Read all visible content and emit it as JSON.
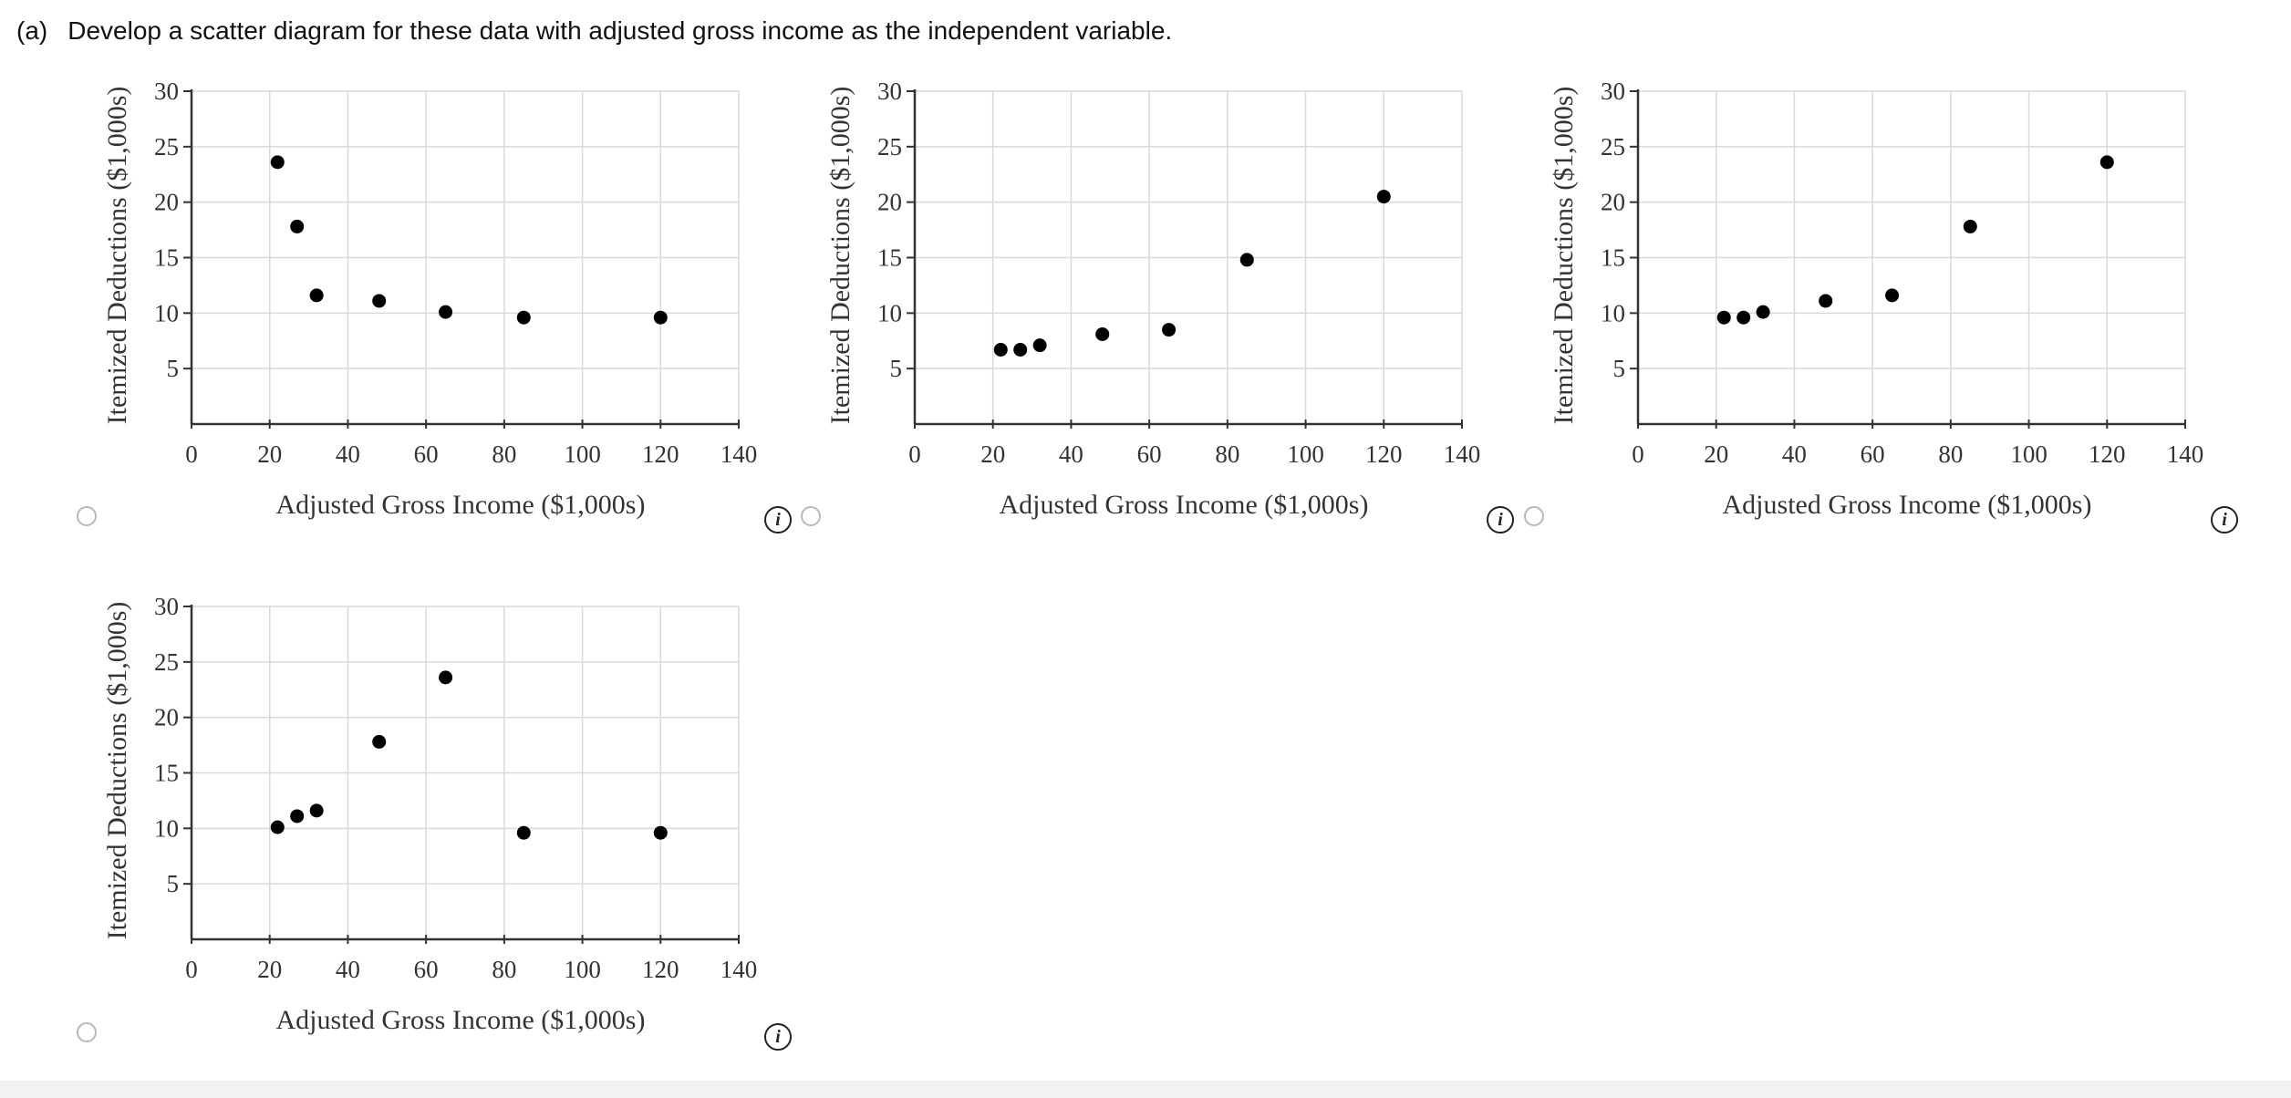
{
  "question": {
    "label": "(a)",
    "text": "Develop a scatter diagram for these data with adjusted gross income as the independent variable."
  },
  "icons": {
    "radio": "radio-button-icon",
    "info": "info-icon"
  },
  "colors": {
    "point": "#000000",
    "grid": "#d9d9d9",
    "axis": "#333333"
  },
  "chart_data": [
    {
      "type": "scatter",
      "xlabel": "Adjusted Gross Income ($1,000s)",
      "ylabel": "Itemized Deductions ($1,000s)",
      "xlim": [
        0,
        140
      ],
      "ylim": [
        0,
        30
      ],
      "xticks": [
        0,
        20,
        40,
        60,
        80,
        100,
        120,
        140
      ],
      "yticks": [
        5,
        10,
        15,
        20,
        25,
        30
      ],
      "points": [
        [
          22,
          23.6
        ],
        [
          27,
          17.8
        ],
        [
          32,
          11.6
        ],
        [
          48,
          11.1
        ],
        [
          65,
          10.1
        ],
        [
          85,
          9.6
        ],
        [
          120,
          9.6
        ]
      ]
    },
    {
      "type": "scatter",
      "xlabel": "Adjusted Gross Income ($1,000s)",
      "ylabel": "Itemized Deductions ($1,000s)",
      "xlim": [
        0,
        140
      ],
      "ylim": [
        0,
        30
      ],
      "xticks": [
        0,
        20,
        40,
        60,
        80,
        100,
        120,
        140
      ],
      "yticks": [
        5,
        10,
        15,
        20,
        25,
        30
      ],
      "points": [
        [
          22,
          6.7
        ],
        [
          27,
          6.7
        ],
        [
          32,
          7.1
        ],
        [
          48,
          8.1
        ],
        [
          65,
          8.5
        ],
        [
          85,
          14.8
        ],
        [
          120,
          20.5
        ]
      ]
    },
    {
      "type": "scatter",
      "xlabel": "Adjusted Gross Income ($1,000s)",
      "ylabel": "Itemized Deductions ($1,000s)",
      "xlim": [
        0,
        140
      ],
      "ylim": [
        0,
        30
      ],
      "xticks": [
        0,
        20,
        40,
        60,
        80,
        100,
        120,
        140
      ],
      "yticks": [
        5,
        10,
        15,
        20,
        25,
        30
      ],
      "points": [
        [
          22,
          9.6
        ],
        [
          27,
          9.6
        ],
        [
          32,
          10.1
        ],
        [
          48,
          11.1
        ],
        [
          65,
          11.6
        ],
        [
          85,
          17.8
        ],
        [
          120,
          23.6
        ]
      ]
    },
    {
      "type": "scatter",
      "xlabel": "Adjusted Gross Income ($1,000s)",
      "ylabel": "Itemized Deductions ($1,000s)",
      "xlim": [
        0,
        140
      ],
      "ylim": [
        0,
        30
      ],
      "xticks": [
        0,
        20,
        40,
        60,
        80,
        100,
        120,
        140
      ],
      "yticks": [
        5,
        10,
        15,
        20,
        25,
        30
      ],
      "points": [
        [
          22,
          10.1
        ],
        [
          27,
          11.1
        ],
        [
          32,
          11.6
        ],
        [
          48,
          17.8
        ],
        [
          65,
          23.6
        ],
        [
          85,
          9.6
        ],
        [
          120,
          9.6
        ]
      ]
    }
  ]
}
